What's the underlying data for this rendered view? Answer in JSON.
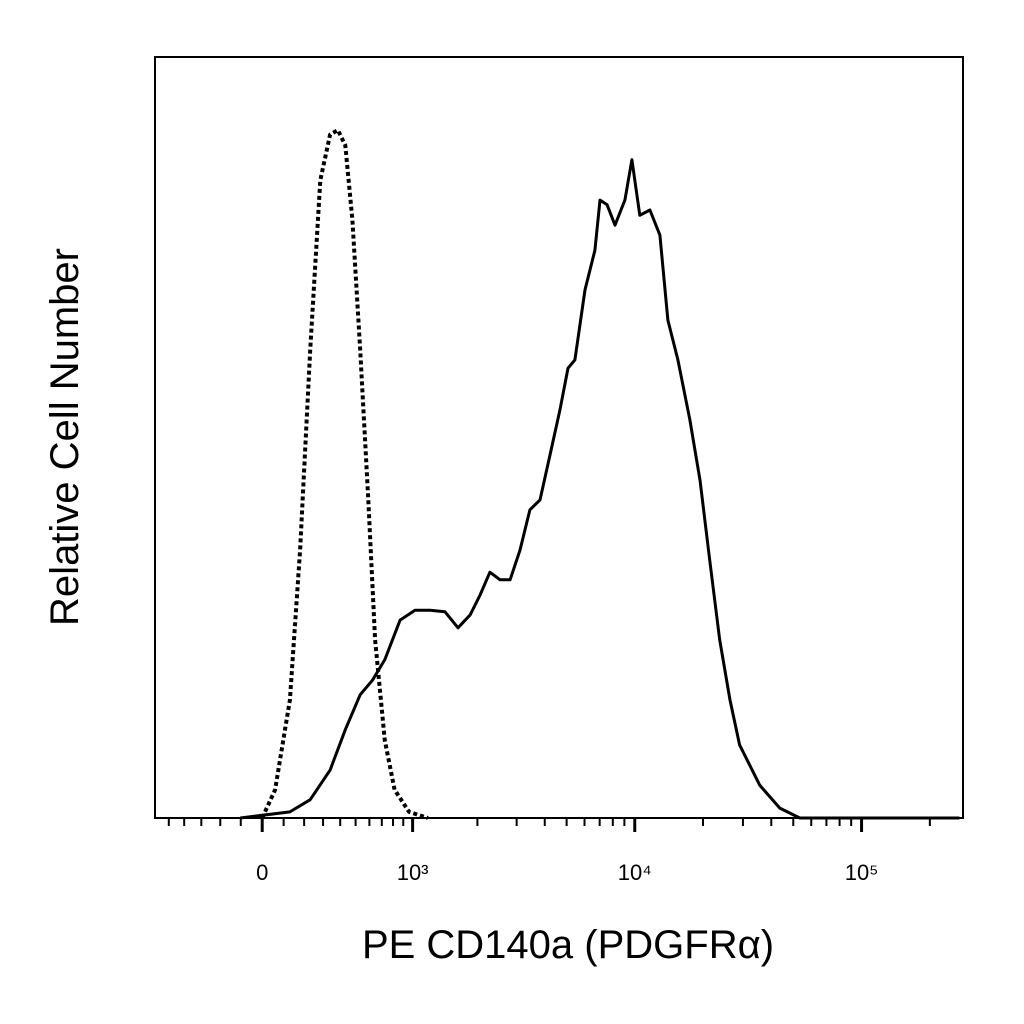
{
  "chart_data": {
    "type": "line",
    "xlabel": "PE  CD140a (PDGFRα)",
    "ylabel": "Relative Cell Number",
    "xscale": "asinh",
    "xlim": [
      -600,
      280000
    ],
    "ylim": [
      0,
      100
    ],
    "xticks": [
      0,
      {
        "value": 1000,
        "label": "10³"
      },
      {
        "value": 10000,
        "label": "10⁴"
      },
      {
        "value": 100000,
        "label": "10⁵"
      }
    ],
    "xminorticks": [
      -500,
      -400,
      -300,
      -200,
      -100,
      100,
      200,
      300,
      400,
      500,
      600,
      700,
      800,
      900,
      2000,
      3000,
      4000,
      5000,
      6000,
      7000,
      8000,
      9000,
      20000,
      30000,
      40000,
      50000,
      60000,
      70000,
      80000,
      90000,
      200000
    ],
    "series": [
      {
        "color": "#000000",
        "dashed": true,
        "x": [
          0,
          60,
          130,
          180,
          231,
          285,
          340,
          386,
          432,
          478,
          532,
          592,
          645,
          726,
          815,
          961,
          1183
        ],
        "values": [
          0,
          3.7,
          15.5,
          35.2,
          61.5,
          83.8,
          89.8,
          90.4,
          88.4,
          78.6,
          61.5,
          41.8,
          23.4,
          10.2,
          3.7,
          0.8,
          0
        ]
      },
      {
        "color": "#000000",
        "dashed": false,
        "x": [
          -102,
          130,
          231,
          340,
          432,
          532,
          623,
          726,
          868,
          1027,
          1210,
          1423,
          1633,
          1855,
          2057,
          2277,
          2530,
          2805,
          3105,
          3438,
          3810,
          4220,
          4670,
          5070,
          5440,
          6030,
          6670,
          7020,
          7540,
          8180,
          9050,
          9710,
          10530,
          11660,
          12910,
          14000,
          15500,
          17500,
          19400,
          21400,
          23700,
          26300,
          29000,
          35600,
          43600,
          53400,
          270000
        ],
        "values": [
          0,
          0.8,
          2.4,
          6.3,
          11.6,
          16.2,
          18.1,
          20.8,
          26.0,
          27.3,
          27.3,
          27.1,
          25.0,
          26.7,
          29.3,
          32.3,
          31.3,
          31.3,
          35.2,
          40.5,
          41.8,
          47.7,
          53.6,
          59.1,
          60.2,
          69.4,
          74.6,
          81.2,
          80.6,
          77.9,
          81.2,
          86.5,
          79.2,
          79.9,
          76.6,
          65.4,
          60.2,
          52.3,
          44.4,
          33.9,
          23.4,
          15.5,
          9.6,
          4.3,
          1.3,
          0,
          0
        ]
      }
    ]
  }
}
